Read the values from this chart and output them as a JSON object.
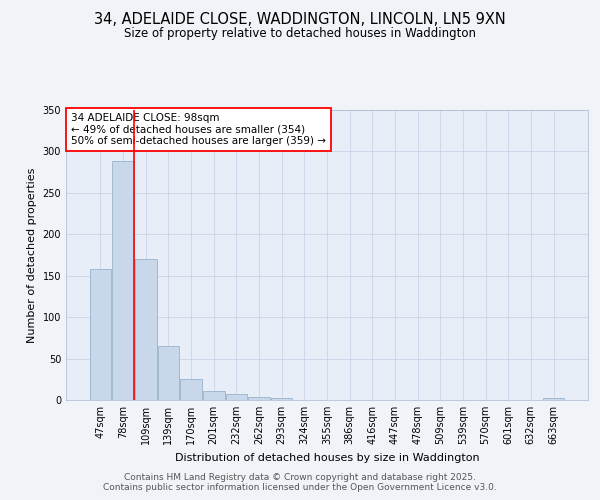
{
  "title_line1": "34, ADELAIDE CLOSE, WADDINGTON, LINCOLN, LN5 9XN",
  "title_line2": "Size of property relative to detached houses in Waddington",
  "xlabel": "Distribution of detached houses by size in Waddington",
  "ylabel": "Number of detached properties",
  "categories": [
    "47sqm",
    "78sqm",
    "109sqm",
    "139sqm",
    "170sqm",
    "201sqm",
    "232sqm",
    "262sqm",
    "293sqm",
    "324sqm",
    "355sqm",
    "386sqm",
    "416sqm",
    "447sqm",
    "478sqm",
    "509sqm",
    "539sqm",
    "570sqm",
    "601sqm",
    "632sqm",
    "663sqm"
  ],
  "values": [
    158,
    288,
    170,
    65,
    25,
    11,
    7,
    4,
    2,
    0,
    0,
    0,
    0,
    0,
    0,
    0,
    0,
    0,
    0,
    0,
    2
  ],
  "bar_color": "#c8d8ea",
  "bar_edge_color": "#98b4cc",
  "red_line_x": 1.5,
  "annotation_text": "34 ADELAIDE CLOSE: 98sqm\n← 49% of detached houses are smaller (354)\n50% of semi-detached houses are larger (359) →",
  "annotation_box_color": "white",
  "annotation_box_edge_color": "red",
  "ylim": [
    0,
    350
  ],
  "yticks": [
    0,
    50,
    100,
    150,
    200,
    250,
    300,
    350
  ],
  "grid_color": "#c8d4e8",
  "background_color": "#f0f4f8",
  "plot_bg_color": "#e8eef8",
  "footer_line1": "Contains HM Land Registry data © Crown copyright and database right 2025.",
  "footer_line2": "Contains public sector information licensed under the Open Government Licence v3.0.",
  "title_fontsize": 10.5,
  "subtitle_fontsize": 8.5,
  "axis_label_fontsize": 8,
  "tick_fontsize": 7,
  "annotation_fontsize": 7.5,
  "footer_fontsize": 6.5
}
